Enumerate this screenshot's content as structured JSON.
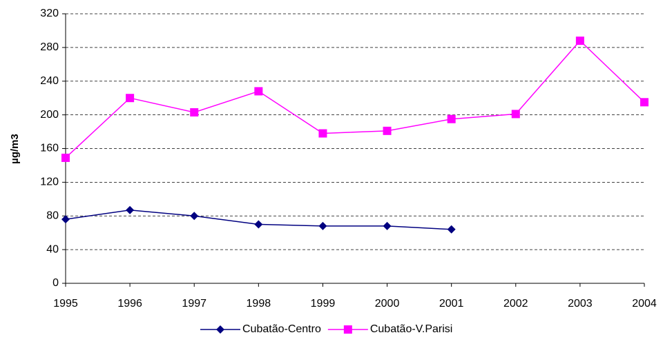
{
  "chart_data": {
    "type": "line",
    "y_label": "µg/m3",
    "x": [
      1995,
      1996,
      1997,
      1998,
      1999,
      2000,
      2001,
      2002,
      2003,
      2004
    ],
    "xlim": [
      1995,
      2004
    ],
    "xticks": [
      1995,
      1996,
      1997,
      1998,
      1999,
      2000,
      2001,
      2002,
      2003,
      2004
    ],
    "ylim": [
      0,
      320
    ],
    "yticks": [
      0,
      40,
      80,
      120,
      160,
      200,
      240,
      280,
      320
    ],
    "grid": true,
    "legend": "bottom",
    "series": [
      {
        "name": "Cubatão-Centro",
        "color": "#000080",
        "marker": "diamond",
        "values": [
          76,
          87,
          80,
          70,
          68,
          68,
          64,
          null,
          null,
          null
        ]
      },
      {
        "name": "Cubatão-V.Parisi",
        "color": "#ff00ff",
        "marker": "square",
        "values": [
          149,
          220,
          203,
          228,
          178,
          181,
          195,
          201,
          288,
          215
        ]
      }
    ]
  }
}
